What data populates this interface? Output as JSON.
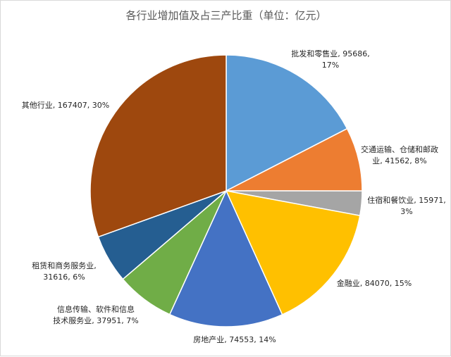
{
  "chart_data": {
    "type": "pie",
    "title": "各行业增加值及占三产比重（单位：亿元）",
    "start_angle_deg": 0,
    "direction": "clockwise",
    "slices": [
      {
        "name": "批发和零售业",
        "value": 95686,
        "percent": "17%",
        "color": "#5B9BD5",
        "label_lines": [
          "批发和零售业, 95686,",
          "17%"
        ]
      },
      {
        "name": "交通运输、仓储和邮政业",
        "value": 41562,
        "percent": "8%",
        "color": "#ED7D31",
        "label_lines": [
          "交通运输、仓储和邮政",
          "业, 41562, 8%"
        ]
      },
      {
        "name": "住宿和餐饮业",
        "value": 15971,
        "percent": "3%",
        "color": "#A5A5A5",
        "label_lines": [
          "住宿和餐饮业, 15971,",
          "3%"
        ]
      },
      {
        "name": "金融业",
        "value": 84070,
        "percent": "15%",
        "color": "#FFC000",
        "label_lines": [
          "金融业, 84070, 15%"
        ]
      },
      {
        "name": "房地产业",
        "value": 74553,
        "percent": "14%",
        "color": "#4472C4",
        "label_lines": [
          "房地产业, 74553, 14%"
        ]
      },
      {
        "name": "信息传输、软件和信息技术服务业",
        "value": 37951,
        "percent": "7%",
        "color": "#70AD47",
        "label_lines": [
          "信息传输、软件和信息",
          "技术服务业, 37951, 7%"
        ]
      },
      {
        "name": "租赁和商务服务业",
        "value": 31616,
        "percent": "6%",
        "color": "#255E91",
        "label_lines": [
          "租赁和商务服务业,",
          "31616, 6%"
        ]
      },
      {
        "name": "其他行业",
        "value": 167407,
        "percent": "30%",
        "color": "#9E480E",
        "label_lines": [
          "其他行业, 167407, 30%"
        ]
      }
    ]
  }
}
